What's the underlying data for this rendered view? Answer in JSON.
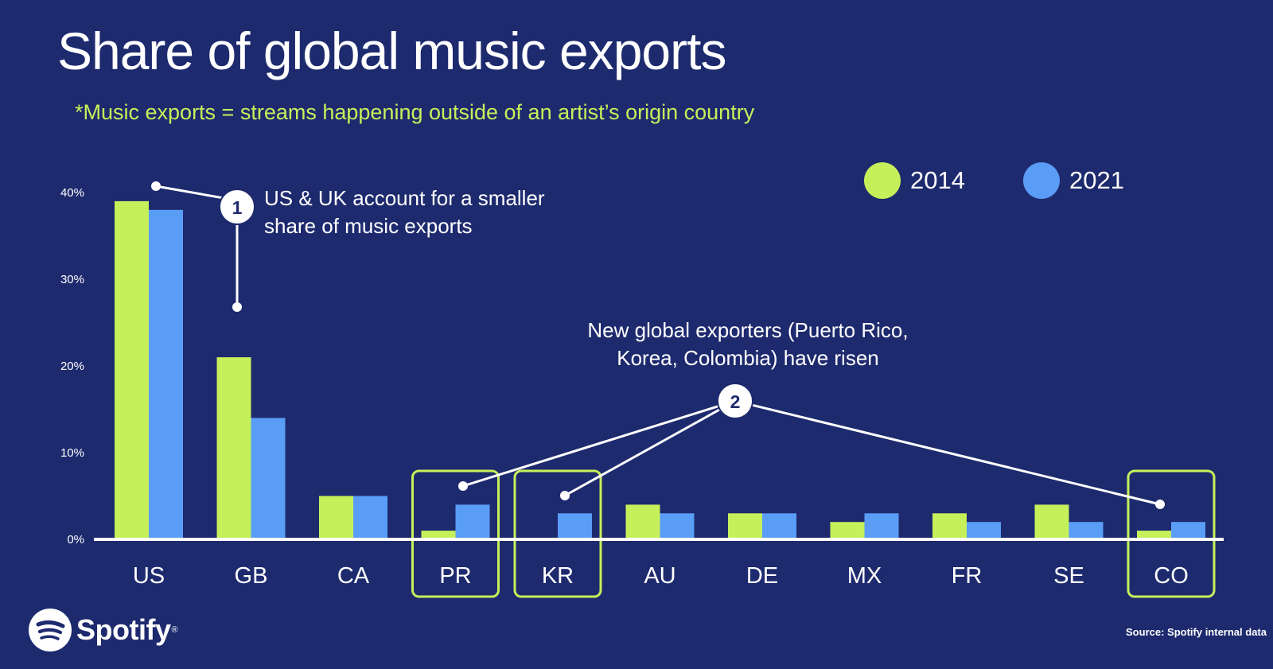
{
  "title": "Share of global music exports",
  "subtitle": "*Music exports = streams happening outside of an artist’s origin country",
  "colors": {
    "background": "#1e2a6e",
    "series_2014": "#c6f05a",
    "series_2021": "#5a9df7",
    "highlight_box": "#c6f05a"
  },
  "annotations": [
    {
      "number": "1",
      "line1": "US & UK account for a smaller",
      "line2": "share of music exports"
    },
    {
      "number": "2",
      "line1": "New global exporters (Puerto Rico,",
      "line2": "Korea, Colombia) have risen"
    }
  ],
  "source": "Source: Spotify internal data",
  "brand": {
    "name": "Spotify",
    "trademark": "®",
    "icon": "spotify-logo-icon"
  },
  "chart_data": {
    "type": "bar",
    "categories": [
      "US",
      "GB",
      "CA",
      "PR",
      "KR",
      "AU",
      "DE",
      "MX",
      "FR",
      "SE",
      "CO"
    ],
    "series": [
      {
        "name": "2014",
        "values": [
          39,
          21,
          5,
          1,
          0,
          4,
          3,
          2,
          3,
          4,
          1
        ]
      },
      {
        "name": "2021",
        "values": [
          38,
          14,
          5,
          4,
          3,
          3,
          3,
          3,
          2,
          2,
          2
        ]
      }
    ],
    "yticks": [
      "0%",
      "10%",
      "20%",
      "30%",
      "40%"
    ],
    "ylim": [
      0,
      40
    ],
    "highlighted": [
      "PR",
      "KR",
      "CO"
    ],
    "legend": "top-right",
    "grid": false
  }
}
